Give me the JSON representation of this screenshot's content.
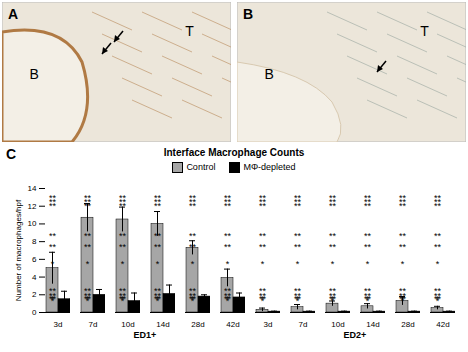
{
  "panels": [
    {
      "letter": "A",
      "labels": [
        "T",
        "B"
      ]
    },
    {
      "letter": "B",
      "labels": [
        "T",
        "B"
      ]
    }
  ],
  "chart_data": {
    "panel": "C",
    "type": "bar",
    "title": "Interface Macrophage Counts",
    "y_label": "Number of macrophages/hpf",
    "categories": [
      "3d",
      "7d",
      "10d",
      "14d",
      "28d",
      "42d",
      "3d",
      "7d",
      "10d",
      "14d",
      "28d",
      "42d"
    ],
    "groups": [
      {
        "name": "ED1+",
        "size": 6
      },
      {
        "name": "ED2+",
        "size": 6
      }
    ],
    "series": [
      {
        "name": "Control",
        "color": "#a6a6a6",
        "values": [
          5.0,
          10.7,
          10.5,
          10.0,
          7.3,
          3.9,
          0.3,
          0.6,
          1.0,
          0.7,
          1.3,
          0.5
        ],
        "errors": [
          1.8,
          1.6,
          1.4,
          1.4,
          0.8,
          1.0,
          0.2,
          0.3,
          0.3,
          0.3,
          0.5,
          0.2
        ]
      },
      {
        "name": "MΦ-depleted",
        "color": "#000000",
        "values": [
          1.5,
          2.0,
          1.3,
          2.1,
          1.8,
          1.7,
          0.1,
          0.1,
          0.1,
          0.1,
          0.1,
          0.1
        ],
        "errors": [
          0.9,
          0.6,
          0.9,
          1.0,
          0.2,
          0.5,
          0.05,
          0.05,
          0.05,
          0.05,
          0.05,
          0.05
        ]
      }
    ],
    "annotations": [
      "**",
      "**",
      "**",
      "**",
      "**",
      "*",
      null,
      "*",
      "**",
      "**",
      "**",
      "*"
    ],
    "ylim": [
      0,
      14
    ],
    "yticks": [
      0,
      2,
      4,
      6,
      8,
      10,
      12,
      14
    ],
    "legend": "top",
    "grid": false
  }
}
